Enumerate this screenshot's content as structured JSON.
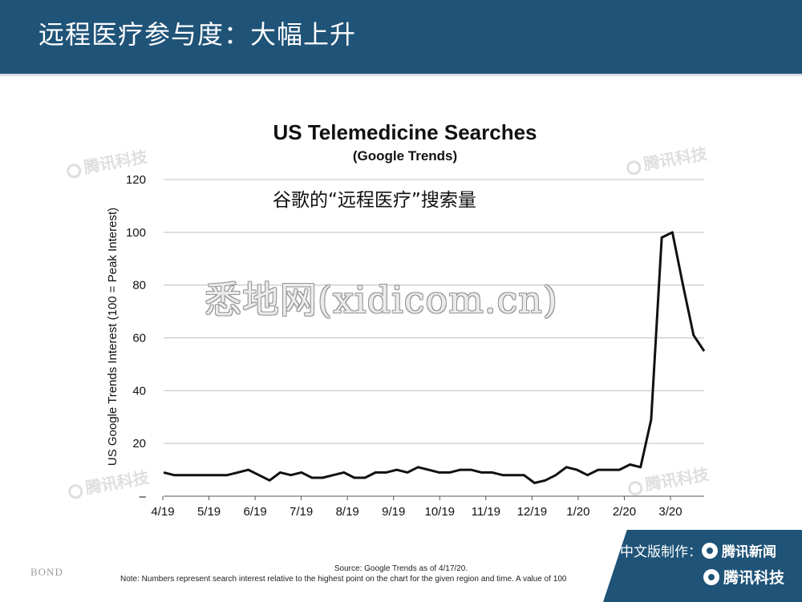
{
  "header": {
    "title": "远程医疗参与度：大幅上升"
  },
  "annotation": "谷歌的“远程医疗”搜索量",
  "watermark": "悉地网(xidicom.cn)",
  "brand_watermark": "腾讯科技",
  "footer": {
    "bond": "BOND",
    "source": "Source: Google Trends as of 4/17/20.",
    "note": "Note: Numbers represent search interest relative to the highest point on the chart for the given region and time. A value of 100"
  },
  "badge": {
    "line1_prefix": "中文版制作：",
    "line1_brand": "腾讯新闻",
    "line2_brand": "腾讯科技"
  },
  "colors": {
    "header_bg": "#1f5378",
    "line": "#111111",
    "grid": "#bfbfbf"
  },
  "chart_data": {
    "type": "line",
    "title": "US Telemedicine Searches",
    "subtitle": "(Google Trends)",
    "ylabel": "US Google Trends Interest (100 = Peak Interest)",
    "xlabel": "",
    "ylim": [
      0,
      120
    ],
    "yticks": [
      0,
      20,
      40,
      60,
      80,
      100,
      120
    ],
    "ytick_labels": [
      "–",
      "20",
      "40",
      "60",
      "80",
      "100",
      "120"
    ],
    "xtick_labels": [
      "4/19",
      "5/19",
      "6/19",
      "7/19",
      "8/19",
      "9/19",
      "10/19",
      "11/19",
      "12/19",
      "1/20",
      "2/20",
      "3/20"
    ],
    "grid": true,
    "legend": "none",
    "series": [
      {
        "values": [
          9,
          8,
          8,
          8,
          8,
          8,
          8,
          9,
          10,
          8,
          6,
          9,
          8,
          9,
          7,
          7,
          8,
          9,
          7,
          7,
          9,
          9,
          10,
          9,
          11,
          10,
          9,
          9,
          10,
          10,
          9,
          9,
          8,
          8,
          8,
          5,
          6,
          8,
          11,
          10,
          8,
          10,
          10,
          10,
          12,
          11,
          29,
          98,
          100,
          80,
          61,
          55
        ]
      }
    ]
  }
}
